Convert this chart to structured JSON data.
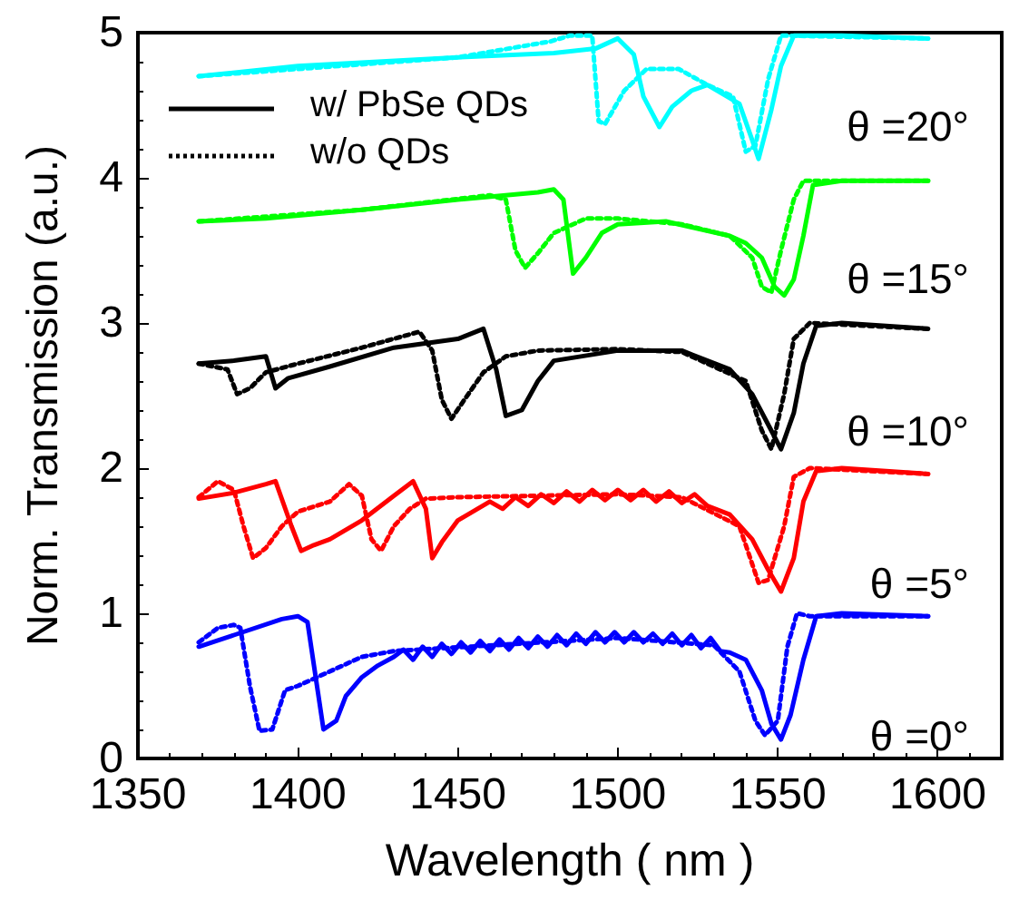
{
  "chart_data": {
    "type": "line",
    "xlabel": "Wavelength ( nm )",
    "ylabel": "Norm. Transmission (a.u.)",
    "xlim": [
      1350,
      1620
    ],
    "xticks": [
      1350,
      1400,
      1450,
      1500,
      1550,
      1600
    ],
    "ylim": [
      0,
      5
    ],
    "yticks": [
      0,
      1,
      2,
      3,
      4,
      5
    ],
    "grid": false,
    "legend": "top left",
    "marker": "none",
    "series": [
      {
        "name": "w/ PbSe QDs",
        "color": "#000000",
        "line_style": "solid",
        "x": [
          1369,
          1380,
          1390,
          1393,
          1397,
          1410,
          1430,
          1450,
          1458,
          1462,
          1465,
          1470,
          1475,
          1480,
          1500,
          1520,
          1535,
          1542,
          1547,
          1551,
          1555,
          1558,
          1562,
          1570,
          1597
        ],
        "values": [
          2.72,
          2.74,
          2.77,
          2.55,
          2.62,
          2.7,
          2.83,
          2.89,
          2.96,
          2.68,
          2.36,
          2.4,
          2.6,
          2.74,
          2.81,
          2.81,
          2.68,
          2.51,
          2.3,
          2.13,
          2.38,
          2.72,
          2.98,
          3.0,
          2.96
        ]
      },
      {
        "name": "w/o QDs",
        "color": "#000000",
        "line_style": "dotted",
        "x": [
          1369,
          1378,
          1381,
          1385,
          1390,
          1400,
          1420,
          1438,
          1442,
          1445,
          1448,
          1452,
          1458,
          1465,
          1475,
          1500,
          1520,
          1540,
          1545,
          1548,
          1552,
          1555,
          1560,
          1597
        ],
        "values": [
          2.72,
          2.68,
          2.51,
          2.55,
          2.66,
          2.72,
          2.83,
          2.94,
          2.81,
          2.47,
          2.34,
          2.47,
          2.66,
          2.77,
          2.81,
          2.82,
          2.8,
          2.6,
          2.26,
          2.13,
          2.51,
          2.89,
          3.0,
          2.96
        ]
      },
      {
        "color": "#00ffff",
        "line_style": "solid",
        "x": [
          1369,
          1400,
          1450,
          1480,
          1493,
          1500,
          1505,
          1508,
          1513,
          1517,
          1523,
          1528,
          1538,
          1542,
          1544,
          1548,
          1551,
          1555,
          1570,
          1597
        ],
        "values": [
          4.7,
          4.77,
          4.83,
          4.86,
          4.89,
          4.96,
          4.85,
          4.56,
          4.35,
          4.49,
          4.6,
          4.64,
          4.51,
          4.26,
          4.13,
          4.47,
          4.77,
          4.98,
          4.98,
          4.96
        ]
      },
      {
        "color": "#00ffff",
        "line_style": "dotted",
        "x": [
          1369,
          1450,
          1479,
          1485,
          1492,
          1494,
          1496,
          1502,
          1509,
          1519,
          1528,
          1536,
          1540,
          1543,
          1547,
          1551,
          1597
        ],
        "values": [
          4.7,
          4.83,
          4.94,
          4.98,
          4.98,
          4.39,
          4.37,
          4.6,
          4.75,
          4.75,
          4.64,
          4.56,
          4.18,
          4.22,
          4.68,
          4.98,
          4.96
        ]
      },
      {
        "color": "#00ff00",
        "line_style": "solid",
        "x": [
          1369,
          1390,
          1420,
          1450,
          1475,
          1480,
          1483,
          1486,
          1490,
          1495,
          1500,
          1515,
          1525,
          1535,
          1540,
          1545,
          1549,
          1552,
          1555,
          1558,
          1561,
          1570,
          1597
        ],
        "values": [
          3.7,
          3.72,
          3.78,
          3.85,
          3.9,
          3.92,
          3.85,
          3.34,
          3.45,
          3.62,
          3.68,
          3.7,
          3.65,
          3.6,
          3.55,
          3.45,
          3.25,
          3.19,
          3.3,
          3.6,
          3.95,
          3.98,
          3.98
        ]
      },
      {
        "color": "#00ff00",
        "line_style": "dotted",
        "x": [
          1369,
          1420,
          1460,
          1465,
          1468,
          1471,
          1475,
          1480,
          1490,
          1500,
          1520,
          1535,
          1542,
          1545,
          1548,
          1551,
          1555,
          1558,
          1597
        ],
        "values": [
          3.7,
          3.78,
          3.88,
          3.85,
          3.5,
          3.38,
          3.48,
          3.62,
          3.72,
          3.72,
          3.68,
          3.6,
          3.45,
          3.25,
          3.21,
          3.5,
          3.85,
          3.98,
          3.98
        ]
      },
      {
        "color": "#ff0000",
        "line_style": "solid",
        "x": [
          1369,
          1380,
          1390,
          1393,
          1398,
          1401,
          1405,
          1410,
          1420,
          1430,
          1436,
          1440,
          1442,
          1445,
          1450,
          1460,
          1464,
          1468,
          1472,
          1476,
          1480,
          1484,
          1488,
          1492,
          1496,
          1500,
          1504,
          1508,
          1512,
          1516,
          1520,
          1524,
          1528,
          1535,
          1542,
          1547,
          1551,
          1555,
          1558,
          1562,
          1570,
          1597
        ],
        "values": [
          1.79,
          1.83,
          1.89,
          1.91,
          1.6,
          1.43,
          1.47,
          1.51,
          1.64,
          1.81,
          1.91,
          1.72,
          1.38,
          1.49,
          1.64,
          1.77,
          1.72,
          1.8,
          1.74,
          1.82,
          1.76,
          1.84,
          1.77,
          1.85,
          1.78,
          1.85,
          1.78,
          1.85,
          1.77,
          1.84,
          1.76,
          1.82,
          1.74,
          1.68,
          1.51,
          1.3,
          1.15,
          1.38,
          1.77,
          1.98,
          2.0,
          1.96
        ]
      },
      {
        "color": "#ff0000",
        "line_style": "dotted",
        "x": [
          1369,
          1375,
          1380,
          1383,
          1386,
          1390,
          1395,
          1400,
          1410,
          1416,
          1420,
          1423,
          1426,
          1430,
          1435,
          1440,
          1450,
          1500,
          1520,
          1538,
          1544,
          1547,
          1552,
          1555,
          1560,
          1597
        ],
        "values": [
          1.8,
          1.91,
          1.85,
          1.6,
          1.38,
          1.45,
          1.6,
          1.7,
          1.77,
          1.89,
          1.81,
          1.51,
          1.43,
          1.6,
          1.72,
          1.79,
          1.8,
          1.82,
          1.8,
          1.6,
          1.21,
          1.23,
          1.6,
          1.94,
          2.0,
          1.96
        ]
      },
      {
        "color": "#0000ff",
        "line_style": "solid",
        "x": [
          1369,
          1380,
          1395,
          1400,
          1403,
          1408,
          1412,
          1415,
          1420,
          1425,
          1430,
          1433,
          1436,
          1439,
          1442,
          1445,
          1448,
          1451,
          1454,
          1457,
          1460,
          1463,
          1466,
          1469,
          1472,
          1475,
          1478,
          1481,
          1484,
          1487,
          1490,
          1493,
          1496,
          1499,
          1502,
          1505,
          1508,
          1511,
          1514,
          1517,
          1520,
          1523,
          1526,
          1529,
          1532,
          1535,
          1540,
          1545,
          1548,
          1551,
          1554,
          1558,
          1562,
          1570,
          1597
        ],
        "values": [
          0.77,
          0.85,
          0.96,
          0.98,
          0.94,
          0.2,
          0.26,
          0.43,
          0.56,
          0.64,
          0.7,
          0.75,
          0.68,
          0.77,
          0.7,
          0.79,
          0.72,
          0.8,
          0.73,
          0.81,
          0.74,
          0.82,
          0.75,
          0.83,
          0.76,
          0.84,
          0.77,
          0.85,
          0.78,
          0.86,
          0.79,
          0.87,
          0.8,
          0.87,
          0.8,
          0.87,
          0.8,
          0.86,
          0.79,
          0.86,
          0.78,
          0.85,
          0.76,
          0.83,
          0.74,
          0.73,
          0.68,
          0.47,
          0.24,
          0.13,
          0.3,
          0.68,
          0.98,
          1.0,
          0.98
        ]
      },
      {
        "color": "#0000ff",
        "line_style": "dotted",
        "x": [
          1369,
          1375,
          1380,
          1382,
          1385,
          1388,
          1392,
          1396,
          1400,
          1410,
          1420,
          1430,
          1500,
          1530,
          1538,
          1543,
          1546,
          1550,
          1553,
          1556,
          1560,
          1597
        ],
        "values": [
          0.8,
          0.9,
          0.92,
          0.9,
          0.5,
          0.19,
          0.2,
          0.47,
          0.5,
          0.6,
          0.7,
          0.74,
          0.83,
          0.78,
          0.6,
          0.26,
          0.16,
          0.26,
          0.77,
          1.0,
          0.98,
          0.98
        ]
      }
    ],
    "annotations": [
      "θ =20°",
      "θ =15°",
      "θ =10°",
      "θ =5°",
      "θ =0°"
    ]
  }
}
